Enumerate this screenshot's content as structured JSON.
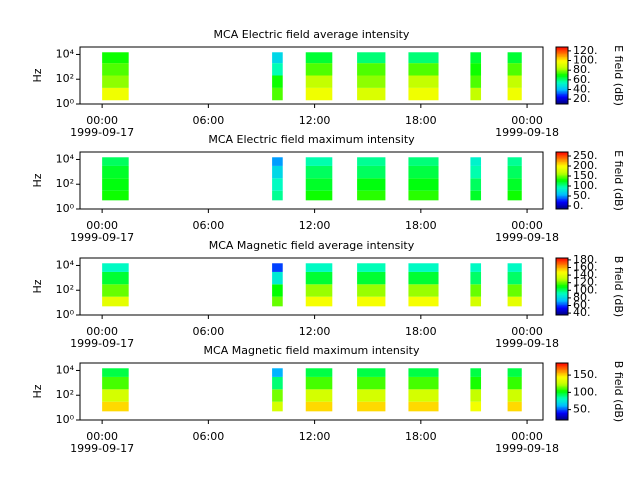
{
  "chart_data": [
    {
      "type": "spectrogram",
      "title": "MCA  Electric field average intensity",
      "ylabel": "Hz",
      "zlabel": "E field (dB)",
      "xlim": [
        -1.25,
        24.9
      ],
      "xticks": [
        {
          "value": 0,
          "label": "00:00"
        },
        {
          "value": 6,
          "label": "06:00"
        },
        {
          "value": 12,
          "label": "12:00"
        },
        {
          "value": 18,
          "label": "18:00"
        },
        {
          "value": 24,
          "label": "00:00"
        }
      ],
      "xdates": [
        {
          "value": 0,
          "label": "1999-09-17"
        },
        {
          "value": 24,
          "label": "1999-09-18"
        }
      ],
      "log_y": true,
      "ylim": [
        1,
        40000
      ],
      "yticks": [
        {
          "value": 1,
          "label": "10⁰"
        },
        {
          "value": 100,
          "label": "10²"
        },
        {
          "value": 10000,
          "label": "10⁴"
        }
      ],
      "zlim": [
        10,
        128
      ],
      "zticks": [
        {
          "value": 20,
          "label": "20."
        },
        {
          "value": 40,
          "label": "40."
        },
        {
          "value": 60,
          "label": "60."
        },
        {
          "value": 80,
          "label": "80."
        },
        {
          "value": 100,
          "label": "100."
        },
        {
          "value": 120,
          "label": "120."
        }
      ],
      "colormap": [
        "#00007f",
        "#0000ff",
        "#00bfff",
        "#00ffbf",
        "#00ff00",
        "#bfff00",
        "#ffff00",
        "#ff8000",
        "#ff0000"
      ],
      "yedges": [
        2,
        20,
        200,
        2000,
        15000
      ],
      "intervals": [
        [
          0,
          1.5
        ],
        [
          9.6,
          10.2
        ],
        [
          11.5,
          13
        ],
        [
          14.4,
          16
        ],
        [
          17.3,
          19
        ],
        [
          20.8,
          21.4
        ],
        [
          22.9,
          23.7
        ]
      ],
      "z": [
        [
          95,
          80,
          75,
          70
        ],
        [
          75,
          70,
          55,
          45
        ],
        [
          95,
          85,
          75,
          65
        ],
        [
          90,
          80,
          75,
          60
        ],
        [
          95,
          85,
          75,
          60
        ],
        [
          85,
          75,
          70,
          65
        ],
        [
          95,
          85,
          75,
          65
        ]
      ]
    },
    {
      "type": "spectrogram",
      "title": "MCA  Electric field maximum intensity",
      "ylabel": "Hz",
      "zlabel": "E field (dB)",
      "xlim": [
        -1.25,
        24.9
      ],
      "xticks": [
        {
          "value": 0,
          "label": "00:00"
        },
        {
          "value": 6,
          "label": "06:00"
        },
        {
          "value": 12,
          "label": "12:00"
        },
        {
          "value": 18,
          "label": "18:00"
        },
        {
          "value": 24,
          "label": "00:00"
        }
      ],
      "xdates": [
        {
          "value": 0,
          "label": "1999-09-17"
        },
        {
          "value": 24,
          "label": "1999-09-18"
        }
      ],
      "log_y": true,
      "ylim": [
        1,
        40000
      ],
      "yticks": [
        {
          "value": 1,
          "label": "10⁰"
        },
        {
          "value": 100,
          "label": "10²"
        },
        {
          "value": 10000,
          "label": "10⁴"
        }
      ],
      "zlim": [
        -15,
        270
      ],
      "zticks": [
        {
          "value": 0,
          "label": "0."
        },
        {
          "value": 50,
          "label": "50."
        },
        {
          "value": 100,
          "label": "100."
        },
        {
          "value": 150,
          "label": "150."
        },
        {
          "value": 200,
          "label": "200."
        },
        {
          "value": 250,
          "label": "250."
        }
      ],
      "colormap": [
        "#00007f",
        "#0000ff",
        "#00bfff",
        "#00ffbf",
        "#00ff00",
        "#bfff00",
        "#ffff00",
        "#ff8000",
        "#ff0000"
      ],
      "yedges": [
        5,
        30,
        300,
        3000,
        15000
      ],
      "intervals": [
        [
          0,
          1.5
        ],
        [
          9.6,
          10.2
        ],
        [
          11.5,
          13
        ],
        [
          14.4,
          16
        ],
        [
          17.3,
          19
        ],
        [
          20.8,
          21.4
        ],
        [
          22.9,
          23.7
        ]
      ],
      "z": [
        [
          130,
          125,
          120,
          110
        ],
        [
          100,
          90,
          70,
          50
        ],
        [
          130,
          120,
          110,
          95
        ],
        [
          135,
          125,
          110,
          100
        ],
        [
          135,
          125,
          115,
          105
        ],
        [
          120,
          110,
          95,
          85
        ],
        [
          130,
          120,
          110,
          100
        ]
      ]
    },
    {
      "type": "spectrogram",
      "title": "MCA  Magnetic field average intensity",
      "ylabel": "Hz",
      "zlabel": "B field (dB)",
      "xlim": [
        -1.25,
        24.9
      ],
      "xticks": [
        {
          "value": 0,
          "label": "00:00"
        },
        {
          "value": 6,
          "label": "06:00"
        },
        {
          "value": 12,
          "label": "12:00"
        },
        {
          "value": 18,
          "label": "18:00"
        },
        {
          "value": 24,
          "label": "00:00"
        }
      ],
      "xdates": [
        {
          "value": 0,
          "label": "1999-09-17"
        },
        {
          "value": 24,
          "label": "1999-09-18"
        }
      ],
      "log_y": true,
      "ylim": [
        1,
        40000
      ],
      "yticks": [
        {
          "value": 1,
          "label": "10⁰"
        },
        {
          "value": 100,
          "label": "10²"
        },
        {
          "value": 10000,
          "label": "10⁴"
        }
      ],
      "zlim": [
        35,
        185
      ],
      "zticks": [
        {
          "value": 40,
          "label": "40."
        },
        {
          "value": 60,
          "label": "60."
        },
        {
          "value": 80,
          "label": "80."
        },
        {
          "value": 100,
          "label": "100."
        },
        {
          "value": 120,
          "label": "120."
        },
        {
          "value": 140,
          "label": "140."
        },
        {
          "value": 160,
          "label": "160."
        },
        {
          "value": 180,
          "label": "180."
        }
      ],
      "colormap": [
        "#00007f",
        "#0000ff",
        "#00bfff",
        "#00ffbf",
        "#00ff00",
        "#bfff00",
        "#ffff00",
        "#ff8000",
        "#ff0000"
      ],
      "yedges": [
        5,
        30,
        300,
        3000,
        15000
      ],
      "intervals": [
        [
          0,
          1.5
        ],
        [
          9.6,
          10.2
        ],
        [
          11.5,
          13
        ],
        [
          14.4,
          16
        ],
        [
          17.3,
          19
        ],
        [
          20.8,
          21.4
        ],
        [
          22.9,
          23.7
        ]
      ],
      "z": [
        [
          140,
          120,
          105,
          90
        ],
        [
          120,
          110,
          85,
          60
        ],
        [
          145,
          125,
          105,
          90
        ],
        [
          145,
          125,
          105,
          92
        ],
        [
          145,
          125,
          105,
          90
        ],
        [
          135,
          120,
          100,
          90
        ],
        [
          140,
          120,
          100,
          90
        ]
      ]
    },
    {
      "type": "spectrogram",
      "title": "MCA  Magnetic field maximum intensity",
      "ylabel": "Hz",
      "zlabel": "B field (dB)",
      "xlim": [
        -1.25,
        24.9
      ],
      "xticks": [
        {
          "value": 0,
          "label": "00:00"
        },
        {
          "value": 6,
          "label": "06:00"
        },
        {
          "value": 12,
          "label": "12:00"
        },
        {
          "value": 18,
          "label": "18:00"
        },
        {
          "value": 24,
          "label": "00:00"
        }
      ],
      "xdates": [
        {
          "value": 0,
          "label": "1999-09-17"
        },
        {
          "value": 24,
          "label": "1999-09-18"
        }
      ],
      "log_y": true,
      "ylim": [
        1,
        40000
      ],
      "yticks": [
        {
          "value": 1,
          "label": "10⁰"
        },
        {
          "value": 100,
          "label": "10²"
        },
        {
          "value": 10000,
          "label": "10⁴"
        }
      ],
      "zlim": [
        20,
        185
      ],
      "zticks": [
        {
          "value": 50,
          "label": "50."
        },
        {
          "value": 100,
          "label": "100."
        },
        {
          "value": 150,
          "label": "150."
        }
      ],
      "colormap": [
        "#00007f",
        "#0000ff",
        "#00bfff",
        "#00ffbf",
        "#00ff00",
        "#bfff00",
        "#ffff00",
        "#ff8000",
        "#ff0000"
      ],
      "yedges": [
        5,
        30,
        300,
        3000,
        15000
      ],
      "intervals": [
        [
          0,
          1.5
        ],
        [
          9.6,
          10.2
        ],
        [
          11.5,
          13
        ],
        [
          14.4,
          16
        ],
        [
          17.3,
          19
        ],
        [
          20.8,
          21.4
        ],
        [
          22.9,
          23.7
        ]
      ],
      "z": [
        [
          150,
          130,
          110,
          95
        ],
        [
          130,
          115,
          90,
          60
        ],
        [
          150,
          130,
          110,
          95
        ],
        [
          150,
          130,
          110,
          95
        ],
        [
          150,
          130,
          110,
          95
        ],
        [
          140,
          125,
          105,
          95
        ],
        [
          150,
          128,
          108,
          95
        ]
      ]
    }
  ]
}
